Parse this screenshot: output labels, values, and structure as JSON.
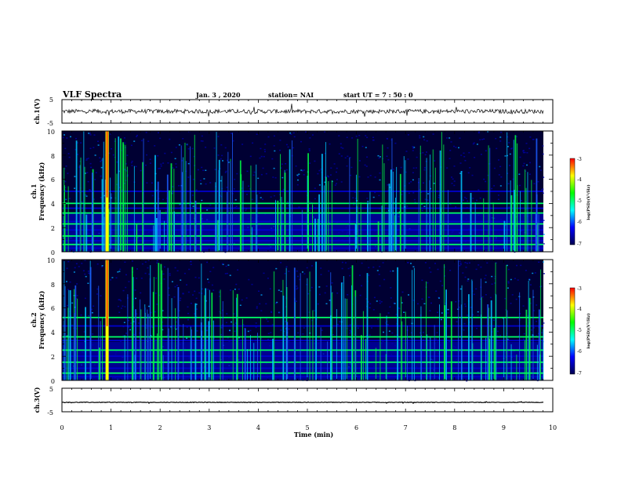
{
  "header": {
    "title": "VLF Spectra",
    "date": "Jan. 3 , 2020",
    "station": "station= NAI",
    "start_ut": "start UT =  7 : 50 : 0"
  },
  "colors": {
    "trace": "#000000",
    "spectrogram_colormap": [
      "#000050",
      "#0000ff",
      "#00ffff",
      "#00ff00",
      "#ffff00",
      "#ff0000"
    ]
  },
  "chart_data": [
    {
      "type": "line",
      "panel": "ch1-waveform",
      "ylabel": "ch.1(V)",
      "ylim": [
        -5,
        5
      ],
      "yticks": [
        "5",
        "-5"
      ],
      "xlim": [
        0,
        10
      ],
      "series": [
        {
          "level_v": 0,
          "note_values": "noisy trace near 0 V with amplitude about ±1 V"
        }
      ]
    },
    {
      "type": "heatmap",
      "panel": "ch1-spectrogram",
      "ylabel_top": "ch.1",
      "ylabel": "Frequency (kHz)",
      "ylim": [
        0,
        10
      ],
      "yticks": [
        "0",
        "2",
        "4",
        "6",
        "8",
        "10"
      ],
      "xlim": [
        0,
        10
      ],
      "horizontal_lines_khz": [
        0.3,
        0.6,
        0.9,
        1.3,
        1.8,
        2.3,
        2.5,
        3.2,
        3.6,
        4.0,
        5.0
      ],
      "strong_impulse_min": 0.92,
      "colorbar": {
        "label": "log(PSD)(V²/Hz)",
        "range": [
          -7,
          -3
        ],
        "ticks": [
          "-3",
          "-4",
          "-5",
          "-6",
          "-7"
        ]
      }
    },
    {
      "type": "heatmap",
      "panel": "ch2-spectrogram",
      "ylabel_top": "ch.2",
      "ylabel": "Frequency (kHz)",
      "ylim": [
        0,
        10
      ],
      "yticks": [
        "0",
        "2",
        "4",
        "6",
        "8",
        "10"
      ],
      "xlim": [
        0,
        10
      ],
      "horizontal_lines_khz": [
        0.3,
        0.6,
        1.0,
        1.5,
        2.0,
        2.5,
        3.3,
        3.6,
        4.5,
        5.2
      ],
      "strong_impulse_min": 0.92,
      "colorbar": {
        "label": "log(PSD)(V²/Hz)",
        "range": [
          -7,
          -3
        ],
        "ticks": [
          "-3",
          "-4",
          "-5",
          "-6",
          "-7"
        ]
      }
    },
    {
      "type": "line",
      "panel": "ch3-waveform",
      "ylabel": "ch.3(V)",
      "ylim": [
        -5,
        5
      ],
      "yticks": [
        "5",
        "-5"
      ],
      "xlim": [
        0,
        10
      ],
      "series": [
        {
          "level_v": -1.0,
          "note_values": "flat trace at about -1 V"
        }
      ]
    }
  ],
  "xaxis": {
    "label": "Time (min)",
    "ticks": [
      "0",
      "1",
      "2",
      "3",
      "4",
      "5",
      "6",
      "7",
      "8",
      "9",
      "10"
    ]
  }
}
